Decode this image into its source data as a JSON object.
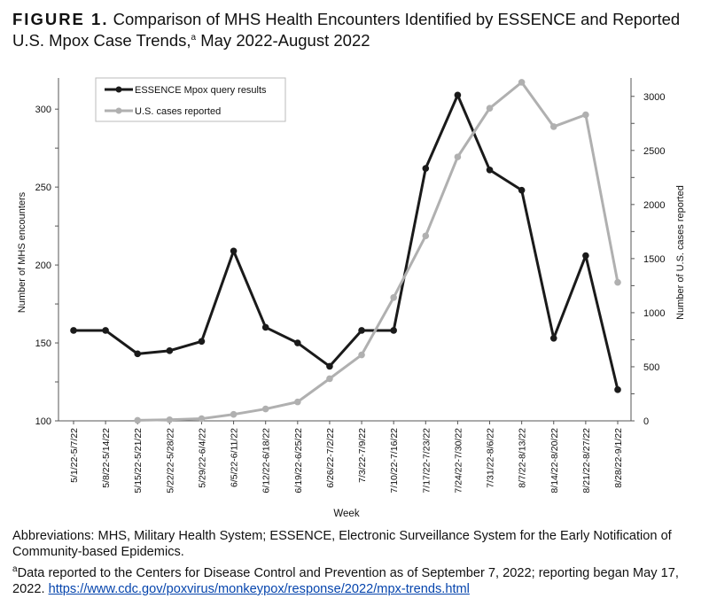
{
  "title": {
    "figure_label": "FIGURE 1.",
    "text": "Comparison of MHS Health Encounters Identified by ESSENCE and Reported U.S. Mpox Case Trends,",
    "sup": "a",
    "text_after": " May 2022-August 2022"
  },
  "chart_data": {
    "type": "line",
    "xlabel": "Week",
    "ylabel": "Number of MHS encounters",
    "y2label": "Number of U.S. cases reported",
    "ylim": [
      100,
      320
    ],
    "yticks": [
      100,
      150,
      200,
      250,
      300
    ],
    "y2lim": [
      0,
      3170
    ],
    "y2ticks": [
      0,
      500,
      1000,
      1500,
      2000,
      2500,
      3000
    ],
    "grid": false,
    "legend": "top-left",
    "categories": [
      "5/1/22-5/7/22",
      "5/8/22-5/14/22",
      "5/15/22-5/21/22",
      "5/22/22-5/28/22",
      "5/29/22-6/4/22",
      "6/5/22-6/11/22",
      "6/12/22-6/18/22",
      "6/19/22-6/25/22",
      "6/26/22-7/2/22",
      "7/3/22-7/9/22",
      "7/10/22-7/16/22",
      "7/17/22-7/23/22",
      "7/24/22-7/30/22",
      "7/31/22-8/6/22",
      "8/7/22-8/13/22",
      "8/14/22-8/20/22",
      "8/21/22-8/27/22",
      "8/28/22-9/1/22"
    ],
    "series": [
      {
        "name": "ESSENCE Mpox query results",
        "axis": "left",
        "color": "#1a1a1a",
        "values": [
          158,
          158,
          143,
          145,
          151,
          209,
          160,
          150,
          135,
          158,
          158,
          262,
          309,
          261,
          248,
          153,
          206,
          120
        ]
      },
      {
        "name": "U.S. cases reported",
        "axis": "right",
        "color": "#b0b0b0",
        "values": [
          null,
          null,
          5,
          10,
          20,
          60,
          110,
          175,
          390,
          610,
          1140,
          1710,
          2440,
          2890,
          3130,
          2720,
          2830,
          1280
        ]
      }
    ]
  },
  "footnotes": {
    "abbreviations": "Abbreviations: MHS, Military Health System; ESSENCE, Electronic Surveillance System for the Early Notification of Community-based Epidemics.",
    "note_marker": "a",
    "note_text": "Data reported to the Centers for Disease Control and Prevention as of September 7, 2022; reporting began May 17, 2022. ",
    "link": "https://www.cdc.gov/poxvirus/monkeypox/response/2022/mpx-trends.html"
  }
}
